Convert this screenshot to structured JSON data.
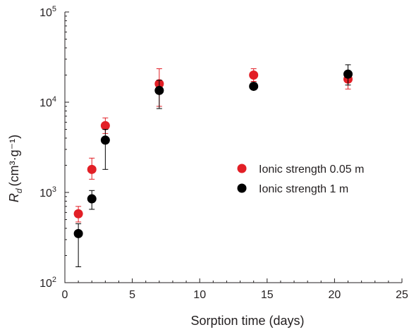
{
  "chart_data": {
    "type": "scatter",
    "title": "",
    "xlabel": "Sorption time (days)",
    "ylabel": {
      "symbol": "R",
      "subscript": "d",
      "units": "(cm³·g⁻¹)"
    },
    "xlim": [
      0,
      25
    ],
    "ylim": [
      100,
      100000
    ],
    "yscale": "log",
    "grid": false,
    "legend_position": "right",
    "x_ticks": [
      "0",
      "5",
      "10",
      "15",
      "20",
      "25"
    ],
    "y_ticks": [
      {
        "base": "10",
        "exp": "2",
        "value": 100
      },
      {
        "base": "10",
        "exp": "3",
        "value": 1000
      },
      {
        "base": "10",
        "exp": "4",
        "value": 10000
      },
      {
        "base": "10",
        "exp": "5",
        "value": 100000
      }
    ],
    "series": [
      {
        "name": "Ionic strength 0.05 m",
        "color": "#e21f26",
        "points": [
          {
            "x": 1,
            "y": 580,
            "low": 470,
            "high": 700
          },
          {
            "x": 2,
            "y": 1800,
            "low": 1400,
            "high": 2400
          },
          {
            "x": 3,
            "y": 5500,
            "low": 4500,
            "high": 6700
          },
          {
            "x": 7,
            "y": 16000,
            "low": 9000,
            "high": 23500
          },
          {
            "x": 14,
            "y": 20000,
            "low": 17000,
            "high": 23500
          },
          {
            "x": 21,
            "y": 18000,
            "low": 14000,
            "high": 21000
          }
        ]
      },
      {
        "name": "Ionic strength 1 m",
        "color": "#000000",
        "points": [
          {
            "x": 1,
            "y": 350,
            "low": 150,
            "high": 450
          },
          {
            "x": 2,
            "y": 850,
            "low": 650,
            "high": 1050
          },
          {
            "x": 3,
            "y": 3800,
            "low": 1800,
            "high": 5000
          },
          {
            "x": 7,
            "y": 13500,
            "low": 8500,
            "high": 17500
          },
          {
            "x": 14,
            "y": 15000,
            "low": 14000,
            "high": 16500
          },
          {
            "x": 21,
            "y": 20500,
            "low": 15500,
            "high": 26000
          }
        ]
      }
    ]
  }
}
